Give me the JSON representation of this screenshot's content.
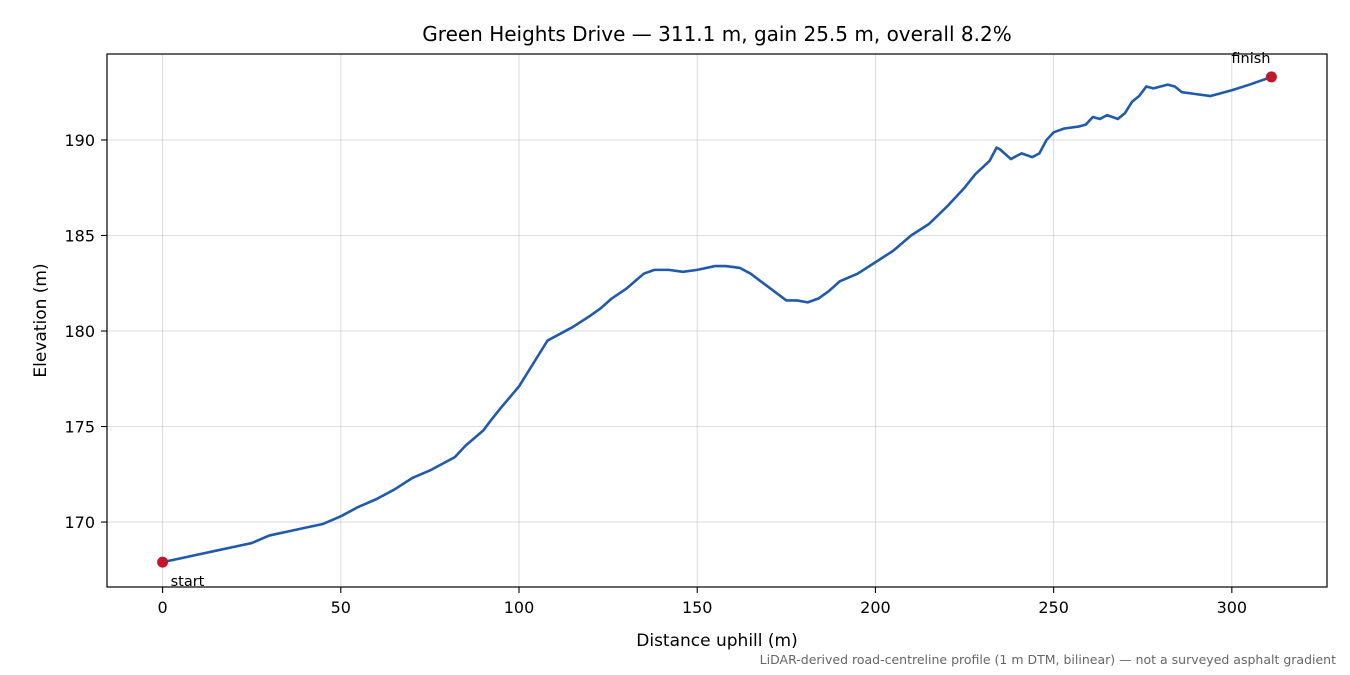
{
  "chart_data": {
    "type": "line",
    "title": "Green Heights Drive — 311.1 m, gain 25.5 m, overall 8.2%",
    "xlabel": "Distance uphill (m)",
    "ylabel": "Elevation (m)",
    "xlim": [
      -15.6,
      326.7
    ],
    "ylim": [
      166.6,
      194.5
    ],
    "xticks": [
      0,
      50,
      100,
      150,
      200,
      250,
      300
    ],
    "yticks": [
      170,
      175,
      180,
      185,
      190
    ],
    "grid": true,
    "line_color": "#1f5aad",
    "marker_color": "#c0182b",
    "series": [
      {
        "x": [
          0,
          5,
          10,
          15,
          20,
          25,
          30,
          35,
          40,
          45,
          50,
          55,
          60,
          65,
          70,
          75,
          78,
          82,
          85,
          90,
          92,
          95,
          100,
          105,
          108,
          112,
          115,
          120,
          123,
          126,
          130,
          135,
          138,
          142,
          146,
          150,
          155,
          158,
          162,
          165,
          170,
          175,
          178,
          181,
          184,
          187,
          190,
          195,
          200,
          205,
          210,
          215,
          220,
          225,
          228,
          232,
          234,
          235,
          238,
          241,
          244,
          246,
          248,
          250,
          253,
          257,
          259,
          261,
          263,
          265,
          268,
          270,
          272,
          274,
          276,
          278,
          280,
          282,
          284,
          286,
          290,
          294,
          296,
          300,
          305,
          311.1
        ],
        "y": [
          167.9,
          168.1,
          168.3,
          168.5,
          168.7,
          168.9,
          169.3,
          169.5,
          169.7,
          169.9,
          170.3,
          170.8,
          171.2,
          171.7,
          172.3,
          172.7,
          173.0,
          173.4,
          174.0,
          174.8,
          175.3,
          176.0,
          177.1,
          178.6,
          179.5,
          179.9,
          180.2,
          180.8,
          181.2,
          181.7,
          182.2,
          183.0,
          183.2,
          183.2,
          183.1,
          183.2,
          183.4,
          183.4,
          183.3,
          183.0,
          182.3,
          181.6,
          181.6,
          181.5,
          181.7,
          182.1,
          182.6,
          183.0,
          183.6,
          184.2,
          185.0,
          185.6,
          186.5,
          187.5,
          188.2,
          188.9,
          189.6,
          189.5,
          189.0,
          189.3,
          189.1,
          189.3,
          190.0,
          190.4,
          190.6,
          190.7,
          190.8,
          191.2,
          191.1,
          191.3,
          191.1,
          191.4,
          192.0,
          192.3,
          192.8,
          192.7,
          192.8,
          192.9,
          192.8,
          192.5,
          192.4,
          192.3,
          192.4,
          192.6,
          192.9,
          193.3
        ]
      }
    ],
    "markers": [
      {
        "x": 0,
        "y": 167.9,
        "label": "start"
      },
      {
        "x": 311.1,
        "y": 193.3,
        "label": "finish"
      }
    ],
    "footnote": "LiDAR-derived road-centreline profile (1 m DTM, bilinear) — not a surveyed asphalt gradient"
  }
}
